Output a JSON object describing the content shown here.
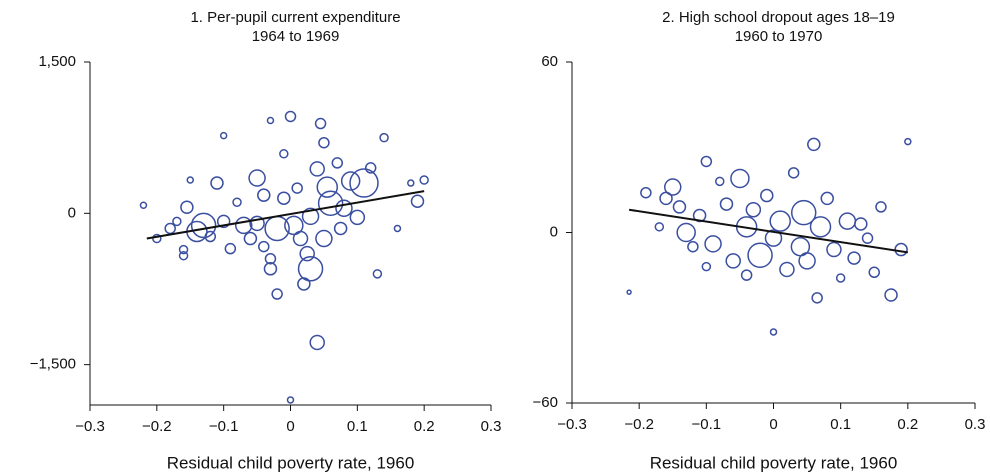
{
  "chart_data": [
    {
      "type": "scatter",
      "title": "1. Per-pupil current expenditure",
      "subtitle": "1964 to 1969",
      "xlabel": "Residual child poverty rate, 1960",
      "color": "#3a4fa0",
      "xlim": [
        -0.3,
        0.3
      ],
      "ylim": [
        -1900,
        1500
      ],
      "xticks": [
        {
          "value": -0.3,
          "label": "−0.3"
        },
        {
          "value": -0.2,
          "label": "−0.2"
        },
        {
          "value": -0.1,
          "label": "−0.1"
        },
        0,
        0.1,
        0.2,
        0.3
      ],
      "yticks": [
        {
          "value": -1500,
          "label": "−1,500"
        },
        0,
        {
          "value": 1500,
          "label": "1,500"
        }
      ],
      "fit": {
        "x": [
          -0.215,
          0.2
        ],
        "y": [
          -250,
          220
        ]
      },
      "x": [
        -0.22,
        -0.2,
        -0.18,
        -0.17,
        -0.16,
        -0.16,
        -0.155,
        -0.15,
        -0.14,
        -0.13,
        -0.12,
        -0.11,
        -0.1,
        -0.1,
        -0.09,
        -0.08,
        -0.07,
        -0.06,
        -0.05,
        -0.05,
        -0.04,
        -0.04,
        -0.03,
        -0.03,
        -0.03,
        -0.02,
        -0.02,
        -0.01,
        -0.01,
        0,
        0,
        0.005,
        0.01,
        0.015,
        0.02,
        0.025,
        0.03,
        0.03,
        0.04,
        0.04,
        0.045,
        0.05,
        0.05,
        0.055,
        0.06,
        0.07,
        0.075,
        0.08,
        0.09,
        0.1,
        0.11,
        0.12,
        0.13,
        0.14,
        0.16,
        0.18,
        0.19,
        0.2
      ],
      "y": [
        80,
        -250,
        -150,
        -80,
        -420,
        -360,
        60,
        330,
        -180,
        -120,
        -230,
        300,
        770,
        -80,
        -350,
        110,
        -120,
        -250,
        350,
        -100,
        180,
        -330,
        -550,
        -450,
        920,
        -150,
        -800,
        590,
        150,
        960,
        -1850,
        -120,
        250,
        -250,
        -700,
        -400,
        -550,
        -30,
        -1280,
        440,
        890,
        700,
        -250,
        260,
        100,
        500,
        -150,
        50,
        320,
        -40,
        300,
        450,
        -600,
        750,
        -150,
        300,
        120,
        330
      ],
      "sizes": [
        3,
        4,
        5,
        4,
        4,
        4,
        6,
        3,
        10,
        12,
        5,
        6,
        3,
        6,
        5,
        4,
        8,
        6,
        8,
        7,
        6,
        5,
        6,
        5,
        3,
        12,
        5,
        4,
        6,
        5,
        3,
        9,
        5,
        7,
        6,
        7,
        12,
        8,
        7,
        7,
        5,
        5,
        8,
        10,
        12,
        5,
        6,
        8,
        9,
        7,
        14,
        5,
        4,
        4,
        3,
        3,
        6,
        4
      ]
    },
    {
      "type": "scatter",
      "title": "2. High school dropout ages 18–19",
      "subtitle": "1960 to 1970",
      "xlabel": "Residual child poverty rate, 1960",
      "color": "#3a4fa0",
      "xlim": [
        -0.3,
        0.3
      ],
      "ylim": [
        -60,
        60
      ],
      "xticks": [
        {
          "value": -0.3,
          "label": "−0.3"
        },
        {
          "value": -0.2,
          "label": "−0.2"
        },
        {
          "value": -0.1,
          "label": "−0.1"
        },
        0,
        0.1,
        0.2,
        0.3
      ],
      "yticks": [
        {
          "value": -60,
          "label": "−60"
        },
        0,
        60
      ],
      "fit": {
        "x": [
          -0.215,
          0.2
        ],
        "y": [
          8,
          -7
        ]
      },
      "x": [
        -0.215,
        -0.19,
        -0.17,
        -0.16,
        -0.15,
        -0.14,
        -0.13,
        -0.12,
        -0.11,
        -0.1,
        -0.1,
        -0.09,
        -0.08,
        -0.07,
        -0.06,
        -0.05,
        -0.04,
        -0.04,
        -0.03,
        -0.02,
        -0.01,
        0,
        0,
        0.01,
        0.02,
        0.03,
        0.04,
        0.045,
        0.05,
        0.06,
        0.065,
        0.07,
        0.08,
        0.09,
        0.1,
        0.11,
        0.12,
        0.13,
        0.14,
        0.15,
        0.16,
        0.175,
        0.19,
        0.2
      ],
      "y": [
        -21,
        14,
        2,
        12,
        16,
        9,
        0,
        -5,
        6,
        25,
        -12,
        -4,
        18,
        10,
        -10,
        19,
        2,
        -15,
        8,
        -8,
        13,
        -2,
        -35,
        4,
        -13,
        21,
        -5,
        7,
        -10,
        31,
        -23,
        2,
        12,
        -6,
        -16,
        4,
        -9,
        3,
        -2,
        -14,
        9,
        -22,
        -6,
        32
      ],
      "sizes": [
        2,
        5,
        4,
        6,
        8,
        6,
        9,
        5,
        6,
        5,
        4,
        8,
        4,
        6,
        7,
        9,
        10,
        5,
        7,
        12,
        6,
        8,
        3,
        10,
        7,
        5,
        9,
        12,
        8,
        6,
        5,
        10,
        6,
        7,
        4,
        8,
        6,
        6,
        5,
        5,
        5,
        6,
        6,
        3
      ]
    }
  ]
}
